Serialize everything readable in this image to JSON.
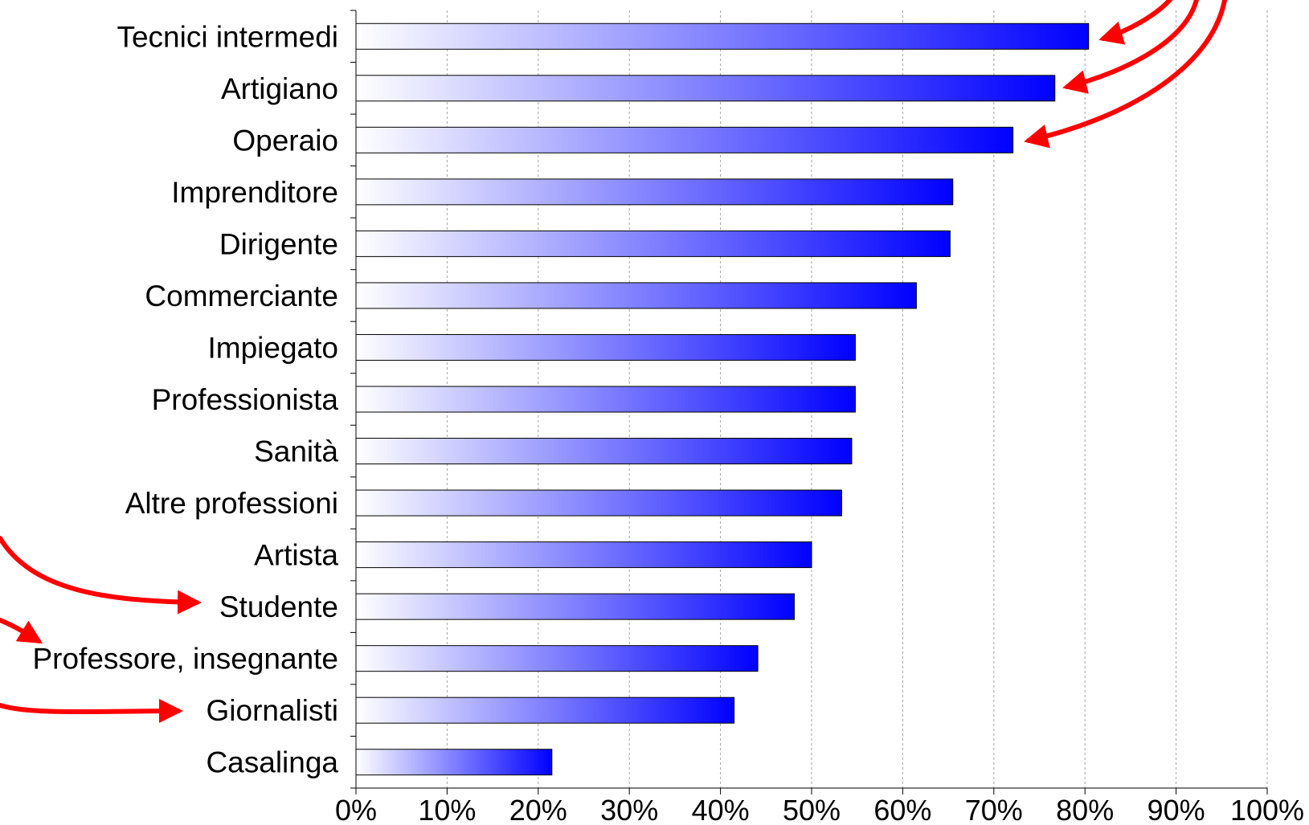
{
  "chart_data": {
    "type": "bar",
    "orientation": "horizontal",
    "categories": [
      "Tecnici intermedi",
      "Artigiano",
      "Operaio",
      "Imprenditore",
      "Dirigente",
      "Commerciante",
      "Impiegato",
      "Professionista",
      "Sanità",
      "Altre professioni",
      "Artista",
      "Studente",
      "Professore, insegnante",
      "Giornalisti",
      "Casalinga"
    ],
    "values": [
      80.4,
      76.7,
      72.1,
      65.5,
      65.2,
      61.5,
      54.8,
      54.8,
      54.4,
      53.3,
      50.0,
      48.1,
      44.1,
      41.5,
      21.5
    ],
    "xlim": [
      0,
      100
    ],
    "x_ticks": [
      "0%",
      "10%",
      "20%",
      "30%",
      "40%",
      "50%",
      "60%",
      "70%",
      "80%",
      "90%",
      "100%"
    ],
    "grid": "vertical dashed",
    "bar_gradient": [
      "#ffffff",
      "#0000ff"
    ],
    "annotations": [
      {
        "type": "arrow",
        "color": "#ff0000",
        "target": "Tecnici intermedi"
      },
      {
        "type": "arrow",
        "color": "#ff0000",
        "target": "Artigiano"
      },
      {
        "type": "arrow",
        "color": "#ff0000",
        "target": "Operaio"
      },
      {
        "type": "arrow",
        "color": "#ff0000",
        "target": "Studente"
      },
      {
        "type": "arrow",
        "color": "#ff0000",
        "target": "Professore, insegnante"
      },
      {
        "type": "arrow",
        "color": "#ff0000",
        "target": "Giornalisti"
      }
    ]
  }
}
